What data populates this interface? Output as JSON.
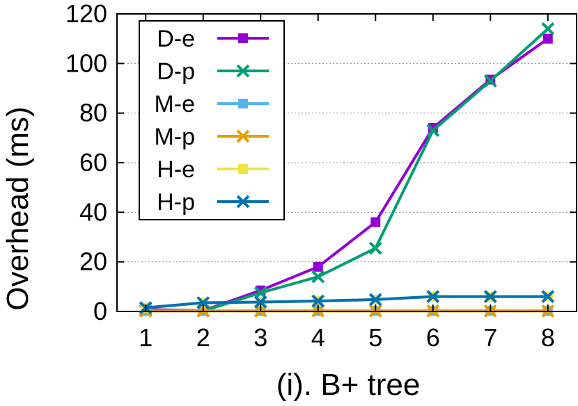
{
  "chart_data": {
    "type": "line",
    "title": "",
    "xlabel": "(i). B+ tree",
    "ylabel": "Overhead (ms)",
    "x": [
      1,
      2,
      3,
      4,
      5,
      6,
      7,
      8
    ],
    "xticks": [
      "1",
      "2",
      "3",
      "4",
      "5",
      "6",
      "7",
      "8"
    ],
    "ylim": [
      0,
      120
    ],
    "yticks": [
      "0",
      "20",
      "40",
      "60",
      "80",
      "100",
      "120"
    ],
    "grid": "horizontal dotted",
    "legend_position": "top-left",
    "series": [
      {
        "name": "D-e",
        "color": "#9400d3",
        "marker": "square",
        "values": [
          0.8,
          0.3,
          8.5,
          18,
          36,
          74,
          93.5,
          110
        ]
      },
      {
        "name": "D-p",
        "color": "#009e73",
        "marker": "x",
        "values": [
          0.5,
          0.2,
          7.5,
          14,
          25.5,
          73,
          93,
          114
        ]
      },
      {
        "name": "M-e",
        "color": "#56b4e9",
        "marker": "square",
        "values": [
          0.2,
          0.2,
          0.2,
          0.2,
          0.2,
          0.2,
          0.2,
          0.2
        ]
      },
      {
        "name": "M-p",
        "color": "#e69f00",
        "marker": "x",
        "values": [
          0.2,
          0.2,
          0.2,
          0.2,
          0.2,
          0.2,
          0.2,
          0.2
        ]
      },
      {
        "name": "H-e",
        "color": "#f0e442",
        "marker": "square",
        "values": [
          1.5,
          3.5,
          3.8,
          4.2,
          4.8,
          6.0,
          6.0,
          6.0
        ]
      },
      {
        "name": "H-p",
        "color": "#0072b2",
        "marker": "x",
        "values": [
          1.5,
          3.5,
          3.8,
          4.2,
          4.8,
          6.0,
          6.0,
          6.0
        ]
      }
    ]
  }
}
